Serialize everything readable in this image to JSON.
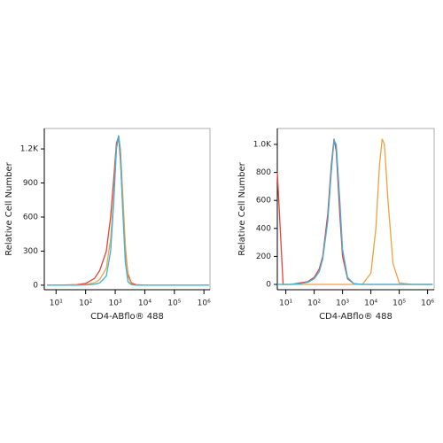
{
  "chart_data": [
    {
      "type": "line",
      "xscale": "log",
      "xlabel": "CD4-ABflo® 488",
      "ylabel": "Relative Cell Number",
      "xlim": [
        4,
        1600000
      ],
      "ylim": [
        -40,
        1380
      ],
      "xticks": [
        {
          "value": 10,
          "label": "10¹"
        },
        {
          "value": 100,
          "label": "10²"
        },
        {
          "value": 1000,
          "label": "10³"
        },
        {
          "value": 10000,
          "label": "10⁴"
        },
        {
          "value": 100000,
          "label": "10⁵"
        },
        {
          "value": 1000000,
          "label": "10⁶"
        }
      ],
      "yticks": [
        0,
        300,
        600,
        900,
        {
          "value": 1200,
          "label": "1.2K"
        }
      ],
      "x": [
        5,
        10,
        20,
        50,
        100,
        200,
        300,
        500,
        700,
        900,
        1100,
        1300,
        1500,
        1800,
        2200,
        2700,
        3500,
        5000,
        10000,
        100000,
        1000000,
        1500000
      ],
      "series": [
        {
          "color": "#e8403a",
          "values": [
            0,
            0,
            2,
            5,
            15,
            60,
            130,
            300,
            600,
            950,
            1250,
            1310,
            1100,
            700,
            300,
            100,
            20,
            5,
            0,
            0,
            0,
            0
          ]
        },
        {
          "color": "#f0a040",
          "values": [
            0,
            0,
            0,
            2,
            5,
            20,
            50,
            150,
            400,
            800,
            1200,
            1320,
            1200,
            800,
            350,
            80,
            10,
            0,
            0,
            0,
            0,
            0
          ]
        },
        {
          "color": "#3bb4d8",
          "values": [
            0,
            0,
            0,
            0,
            2,
            8,
            20,
            80,
            300,
            750,
            1200,
            1320,
            1150,
            650,
            200,
            30,
            5,
            0,
            0,
            0,
            0,
            0
          ]
        }
      ]
    },
    {
      "type": "line",
      "xscale": "log",
      "xlabel": "CD4-ABflo® 488",
      "ylabel": "Relative Cell Number",
      "xlim": [
        5,
        1700000
      ],
      "ylim": [
        -38,
        1114
      ],
      "xticks": [
        {
          "value": 10,
          "label": "10¹"
        },
        {
          "value": 100,
          "label": "10²"
        },
        {
          "value": 1000,
          "label": "10³"
        },
        {
          "value": 10000,
          "label": "10⁴"
        },
        {
          "value": 100000,
          "label": "10⁵"
        },
        {
          "value": 1000000,
          "label": "10⁶"
        }
      ],
      "yticks": [
        0,
        200,
        400,
        600,
        800,
        {
          "value": 1000,
          "label": "1.0K"
        }
      ],
      "x": [
        5,
        8,
        15,
        30,
        60,
        100,
        150,
        200,
        300,
        400,
        500,
        600,
        800,
        1000,
        1500,
        2500,
        5000,
        10000,
        15000,
        20000,
        25000,
        30000,
        40000,
        60000,
        100000,
        300000,
        1500000
      ],
      "series": [
        {
          "color": "#e8403a",
          "values": [
            800,
            0,
            0,
            10,
            20,
            50,
            110,
            200,
            500,
            850,
            1040,
            950,
            500,
            200,
            40,
            5,
            0,
            0,
            0,
            0,
            0,
            0,
            0,
            0,
            0,
            0,
            0
          ]
        },
        {
          "color": "#f0a040",
          "values": [
            0,
            0,
            0,
            0,
            0,
            0,
            0,
            0,
            0,
            0,
            0,
            0,
            0,
            0,
            0,
            0,
            0,
            80,
            400,
            850,
            1040,
            1000,
            600,
            150,
            10,
            0,
            0
          ]
        },
        {
          "color": "#3bb4d8",
          "values": [
            0,
            0,
            0,
            5,
            15,
            40,
            90,
            180,
            450,
            800,
            1030,
            1000,
            600,
            250,
            50,
            5,
            0,
            0,
            0,
            0,
            0,
            0,
            0,
            0,
            0,
            0,
            0
          ]
        }
      ]
    }
  ]
}
